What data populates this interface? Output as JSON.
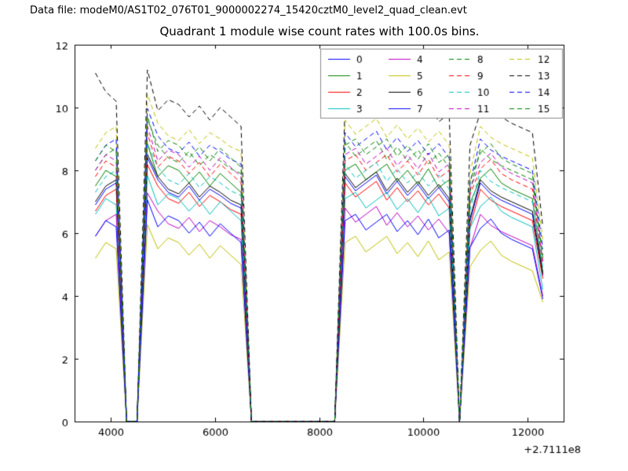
{
  "header": {
    "data_file": "Data file: modeM0/AS1T02_076T01_9000002274_15420cztM0_level2_quad_clean.evt"
  },
  "chart_data": {
    "type": "line",
    "title": "Quadrant 1 module wise count rates with 100.0s bins.",
    "xlabel": "",
    "ylabel": "",
    "xlim": [
      3300,
      12700
    ],
    "ylim": [
      0,
      12
    ],
    "xticks": [
      4000,
      6000,
      8000,
      10000,
      12000
    ],
    "yticks": [
      0,
      2,
      4,
      6,
      8,
      10,
      12
    ],
    "x_offset_label": "+2.7111e8",
    "grid": false,
    "legend": {
      "ncol": 4,
      "position": "upper right"
    },
    "x": [
      3700,
      3900,
      4100,
      4300,
      4500,
      4700,
      4900,
      5100,
      5300,
      5500,
      5700,
      5900,
      6100,
      6300,
      6500,
      6700,
      6900,
      7100,
      7300,
      7500,
      7700,
      7900,
      8100,
      8300,
      8500,
      8700,
      8900,
      9100,
      9300,
      9500,
      9700,
      9900,
      10100,
      10300,
      10500,
      10700,
      10900,
      11100,
      11300,
      11500,
      11700,
      11900,
      12100,
      12300
    ],
    "series": [
      {
        "name": "0",
        "color": "#0000ff",
        "dash": false,
        "values": [
          6.9,
          7.4,
          7.6,
          0,
          0,
          8.4,
          7.7,
          7.3,
          7.15,
          7.5,
          7.05,
          7.4,
          7.2,
          6.95,
          6.8,
          0,
          0,
          0,
          0,
          0,
          0,
          0,
          0,
          0,
          7.8,
          7.35,
          7.6,
          7.85,
          7.25,
          7.65,
          7.2,
          7.55,
          7.1,
          7.45,
          7.0,
          0,
          6.38,
          7.6,
          7.25,
          7.05,
          6.9,
          6.75,
          6.6,
          4.65
        ]
      },
      {
        "name": "1",
        "color": "#008000",
        "dash": false,
        "values": [
          7.5,
          8.0,
          7.8,
          0,
          0,
          8.85,
          7.8,
          8.15,
          8.0,
          7.6,
          7.95,
          7.5,
          7.9,
          7.6,
          7.3,
          0,
          0,
          0,
          0,
          0,
          0,
          0,
          0,
          0,
          8.0,
          8.2,
          7.7,
          7.95,
          8.2,
          7.65,
          8.0,
          7.55,
          8.05,
          7.45,
          7.7,
          0,
          6.95,
          7.75,
          8.05,
          7.6,
          7.4,
          7.25,
          7.1,
          4.75
        ]
      },
      {
        "name": "2",
        "color": "#ff0000",
        "dash": false,
        "values": [
          6.7,
          7.2,
          7.4,
          0,
          0,
          8.18,
          7.5,
          7.1,
          6.95,
          7.3,
          6.85,
          7.2,
          7.0,
          6.75,
          6.6,
          0,
          0,
          0,
          0,
          0,
          0,
          0,
          0,
          0,
          7.6,
          7.15,
          7.4,
          7.65,
          7.05,
          7.45,
          7.0,
          7.35,
          6.9,
          7.25,
          6.8,
          0,
          6.2,
          7.4,
          7.05,
          6.85,
          6.7,
          6.55,
          6.4,
          4.55
        ]
      },
      {
        "name": "3",
        "color": "#00bfbf",
        "dash": false,
        "values": [
          6.6,
          7.1,
          6.9,
          0,
          0,
          7.84,
          6.9,
          7.25,
          7.1,
          6.7,
          7.05,
          6.6,
          7.0,
          6.7,
          6.4,
          0,
          0,
          0,
          0,
          0,
          0,
          0,
          0,
          0,
          7.1,
          7.3,
          6.8,
          7.05,
          7.3,
          6.75,
          7.1,
          6.65,
          7.15,
          6.55,
          6.8,
          0,
          6.16,
          6.85,
          7.15,
          6.7,
          6.5,
          6.35,
          6.2,
          4.2
        ]
      },
      {
        "name": "4",
        "color": "#bf00bf",
        "dash": false,
        "values": [
          5.9,
          6.4,
          6.6,
          0,
          0,
          7.28,
          6.7,
          6.3,
          6.15,
          6.5,
          6.05,
          6.4,
          6.2,
          5.95,
          5.8,
          0,
          0,
          0,
          0,
          0,
          0,
          0,
          0,
          0,
          6.8,
          6.35,
          6.6,
          6.85,
          6.25,
          6.65,
          6.2,
          6.55,
          6.1,
          6.45,
          6.0,
          0,
          5.53,
          6.6,
          6.25,
          6.05,
          5.9,
          5.75,
          5.6,
          4.0
        ]
      },
      {
        "name": "5",
        "color": "#bfbf00",
        "dash": false,
        "values": [
          5.2,
          5.7,
          5.5,
          0,
          0,
          6.27,
          5.5,
          5.85,
          5.7,
          5.3,
          5.65,
          5.2,
          5.6,
          5.3,
          5.0,
          0,
          0,
          0,
          0,
          0,
          0,
          0,
          0,
          0,
          5.7,
          5.9,
          5.4,
          5.65,
          5.9,
          5.35,
          5.7,
          5.25,
          5.75,
          5.15,
          5.4,
          0,
          4.93,
          5.45,
          5.75,
          5.3,
          5.1,
          4.95,
          4.8,
          3.8
        ]
      },
      {
        "name": "6",
        "color": "#000000",
        "dash": false,
        "values": [
          7.0,
          7.5,
          7.7,
          0,
          0,
          8.51,
          7.8,
          7.4,
          7.25,
          7.6,
          7.15,
          7.5,
          7.3,
          7.05,
          6.9,
          0,
          0,
          0,
          0,
          0,
          0,
          0,
          0,
          0,
          7.9,
          7.45,
          7.7,
          7.95,
          7.35,
          7.75,
          7.3,
          7.65,
          7.2,
          7.55,
          7.1,
          0,
          6.46,
          7.7,
          7.35,
          7.15,
          7.0,
          6.85,
          6.7,
          4.7
        ]
      },
      {
        "name": "7",
        "color": "#0000ff",
        "dash": false,
        "values": [
          5.9,
          6.4,
          6.2,
          0,
          0,
          7.06,
          6.2,
          6.55,
          6.4,
          6.0,
          6.35,
          5.9,
          6.3,
          6.0,
          5.7,
          0,
          0,
          0,
          0,
          0,
          0,
          0,
          0,
          0,
          6.4,
          6.6,
          6.1,
          6.35,
          6.6,
          6.05,
          6.4,
          5.95,
          6.45,
          5.85,
          6.1,
          0,
          5.54,
          6.15,
          6.45,
          6.0,
          5.8,
          5.65,
          5.5,
          3.9
        ]
      },
      {
        "name": "8",
        "color": "#008000",
        "dash": true,
        "values": [
          8.0,
          8.5,
          8.7,
          0,
          0,
          9.63,
          8.8,
          8.4,
          8.25,
          8.6,
          8.15,
          8.5,
          8.3,
          8.05,
          7.9,
          0,
          0,
          0,
          0,
          0,
          0,
          0,
          0,
          0,
          8.9,
          8.45,
          8.7,
          8.95,
          8.35,
          8.75,
          8.3,
          8.65,
          8.2,
          8.55,
          8.1,
          0,
          7.31,
          8.7,
          8.35,
          8.15,
          8.0,
          7.85,
          7.7,
          5.3
        ]
      },
      {
        "name": "9",
        "color": "#ff0000",
        "dash": true,
        "values": [
          7.8,
          8.3,
          8.1,
          0,
          0,
          9.18,
          8.1,
          8.45,
          8.3,
          7.9,
          8.25,
          7.8,
          8.2,
          7.9,
          7.6,
          0,
          0,
          0,
          0,
          0,
          0,
          0,
          0,
          0,
          8.3,
          8.5,
          8.0,
          8.25,
          8.5,
          7.95,
          8.3,
          7.85,
          8.35,
          7.75,
          8.0,
          0,
          7.22,
          8.05,
          8.35,
          7.9,
          7.7,
          7.55,
          7.4,
          5.0
        ]
      },
      {
        "name": "10",
        "color": "#00bfbf",
        "dash": true,
        "values": [
          7.3,
          7.8,
          8.0,
          0,
          0,
          8.85,
          8.1,
          7.7,
          7.55,
          7.9,
          7.45,
          7.8,
          7.6,
          7.35,
          7.2,
          0,
          0,
          0,
          0,
          0,
          0,
          0,
          0,
          0,
          8.2,
          7.75,
          8.0,
          8.25,
          7.65,
          8.05,
          7.6,
          7.95,
          7.5,
          7.85,
          7.4,
          0,
          6.72,
          8.0,
          7.65,
          7.45,
          7.3,
          7.15,
          7.0,
          4.9
        ]
      },
      {
        "name": "11",
        "color": "#bf00bf",
        "dash": true,
        "values": [
          8.0,
          8.5,
          8.3,
          0,
          0,
          9.41,
          8.3,
          8.65,
          8.5,
          8.1,
          8.45,
          8.0,
          8.4,
          8.1,
          7.8,
          0,
          0,
          0,
          0,
          0,
          0,
          0,
          0,
          0,
          8.5,
          8.7,
          8.2,
          8.45,
          8.7,
          8.15,
          8.5,
          8.05,
          8.55,
          7.95,
          8.2,
          0,
          7.39,
          8.25,
          8.55,
          8.1,
          7.9,
          7.75,
          7.6,
          5.1
        ]
      },
      {
        "name": "12",
        "color": "#bfbf00",
        "dash": true,
        "values": [
          8.7,
          9.2,
          9.4,
          0,
          0,
          10.42,
          9.5,
          9.1,
          8.95,
          9.3,
          8.85,
          9.2,
          9.0,
          8.75,
          8.6,
          0,
          0,
          0,
          0,
          0,
          0,
          0,
          0,
          0,
          9.6,
          9.15,
          9.4,
          9.65,
          9.05,
          9.45,
          9.0,
          9.35,
          8.9,
          9.25,
          8.8,
          0,
          7.91,
          9.4,
          9.05,
          8.85,
          8.7,
          8.55,
          8.4,
          5.8
        ]
      },
      {
        "name": "13",
        "color": "#000000",
        "dash": true,
        "values": [
          11.1,
          10.5,
          10.2,
          0,
          0,
          11.2,
          9.9,
          10.25,
          10.1,
          9.7,
          10.05,
          9.6,
          10.0,
          9.7,
          9.4,
          0,
          0,
          0,
          0,
          0,
          0,
          0,
          0,
          0,
          10.1,
          10.3,
          9.8,
          10.05,
          10.3,
          9.75,
          10.1,
          9.65,
          10.15,
          9.55,
          9.8,
          0,
          8.8,
          9.85,
          10.15,
          9.7,
          9.5,
          9.35,
          9.2,
          6.2
        ]
      },
      {
        "name": "14",
        "color": "#0000ff",
        "dash": true,
        "values": [
          8.3,
          8.8,
          9.0,
          0,
          0,
          9.97,
          9.1,
          8.7,
          8.55,
          8.9,
          8.45,
          8.8,
          8.6,
          8.35,
          8.2,
          0,
          0,
          0,
          0,
          0,
          0,
          0,
          0,
          0,
          9.2,
          8.75,
          9.0,
          9.25,
          8.65,
          9.05,
          8.6,
          8.95,
          8.5,
          8.85,
          8.4,
          0,
          7.57,
          9.0,
          8.65,
          8.45,
          8.3,
          8.15,
          8.0,
          5.5
        ]
      },
      {
        "name": "15",
        "color": "#008000",
        "dash": true,
        "values": [
          8.3,
          8.8,
          8.6,
          0,
          0,
          9.74,
          8.6,
          8.95,
          8.8,
          8.4,
          8.75,
          8.3,
          8.7,
          8.4,
          8.1,
          0,
          0,
          0,
          0,
          0,
          0,
          0,
          0,
          0,
          8.8,
          9.0,
          8.5,
          8.75,
          9.0,
          8.45,
          8.8,
          8.35,
          8.85,
          8.25,
          8.5,
          0,
          7.66,
          8.55,
          8.85,
          8.4,
          8.2,
          8.05,
          7.9,
          5.2
        ]
      }
    ]
  }
}
